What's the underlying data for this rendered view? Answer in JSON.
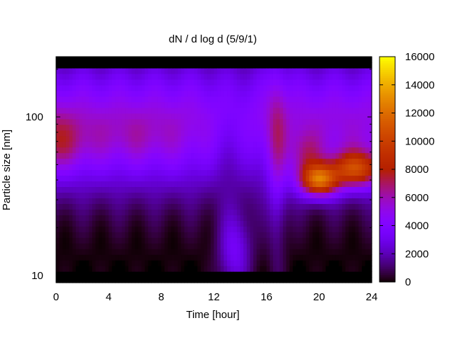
{
  "chart_data": {
    "type": "heatmap",
    "title": "dN / d log d (5/9/1)",
    "xlabel": "Time [hour]",
    "ylabel": "Particle size [nm]",
    "xlim": [
      0,
      24
    ],
    "ylim": [
      9,
      240
    ],
    "yscale": "log",
    "xticks": [
      "0",
      "4",
      "8",
      "12",
      "16",
      "20",
      "24"
    ],
    "yticks": [
      "10",
      "100"
    ],
    "colorbar": {
      "range": [
        0,
        16000
      ],
      "ticks": [
        "0",
        "2000",
        "4000",
        "6000",
        "8000",
        "10000",
        "12000",
        "14000",
        "16000"
      ],
      "palette": "gnuplot"
    },
    "features": [
      {
        "x": 0,
        "y": 70,
        "value": 7500
      },
      {
        "x": 6,
        "y": 75,
        "value": 6000
      },
      {
        "x": 13.5,
        "y": 12,
        "value": 3800
      },
      {
        "x": 20,
        "y": 40,
        "value": 14500
      },
      {
        "x": 22.8,
        "y": 48,
        "value": 13000
      }
    ]
  }
}
